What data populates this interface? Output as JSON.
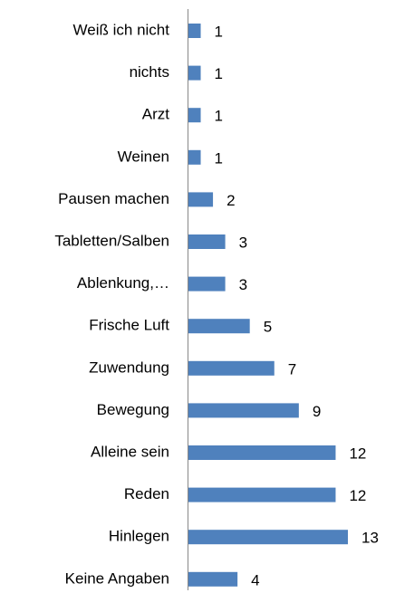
{
  "chart_data": {
    "type": "bar",
    "orientation": "horizontal",
    "categories": [
      "Weiß ich nicht",
      "nichts",
      "Arzt",
      "Weinen",
      "Pausen machen",
      "Tabletten/Salben",
      "Ablenkung,…",
      "Frische Luft",
      "Zuwendung",
      "Bewegung",
      "Alleine sein",
      "Reden",
      "Hinlegen",
      "Keine Angaben"
    ],
    "values": [
      1,
      1,
      1,
      1,
      2,
      3,
      3,
      5,
      7,
      9,
      12,
      12,
      13,
      4
    ],
    "color": "#4f81bd"
  }
}
